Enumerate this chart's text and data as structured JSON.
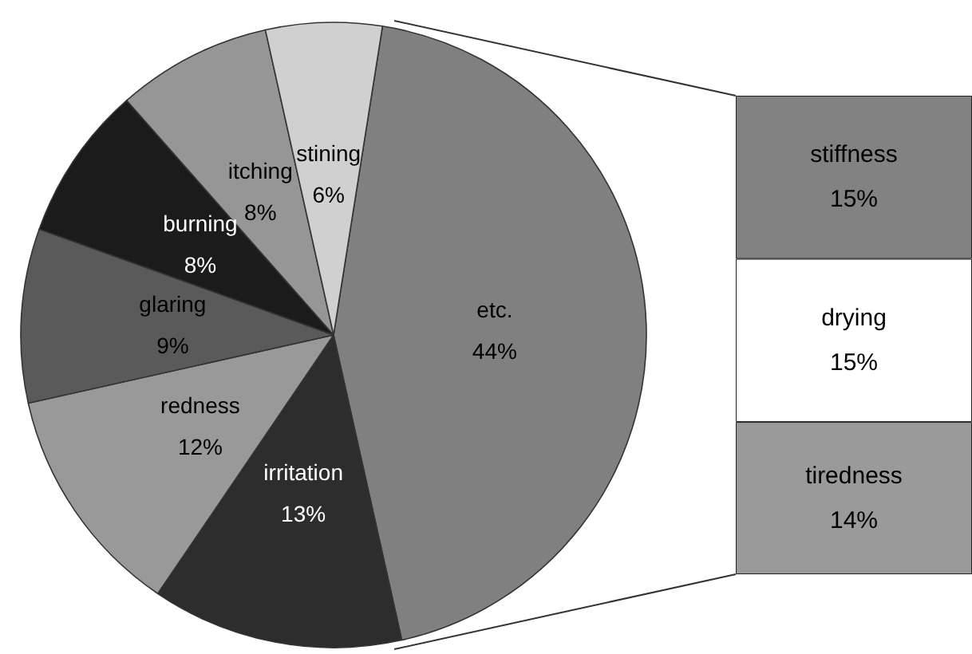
{
  "chart_data": [
    {
      "type": "pie",
      "categories": [
        "etc.",
        "irritation",
        "redness",
        "glaring",
        "burning",
        "itching",
        "stining"
      ],
      "values": [
        44,
        13,
        12,
        9,
        8,
        8,
        6
      ],
      "value_labels": [
        "44%",
        "13%",
        "12%",
        "9%",
        "8%",
        "8%",
        "6%"
      ],
      "colors": [
        "#808080",
        "#2d2d2d",
        "#999999",
        "#5a5a5a",
        "#1b1b1b",
        "#969696",
        "#d0d0d0"
      ]
    },
    {
      "type": "bar",
      "stacked": true,
      "categories": [
        null
      ],
      "series": [
        {
          "name": "tiredness",
          "color": "#9a9a9a",
          "values": [
            14
          ],
          "value_labels": [
            "14%"
          ]
        },
        {
          "name": "drying",
          "color": "#ffffff",
          "values": [
            15
          ],
          "value_labels": [
            "15%"
          ]
        },
        {
          "name": "stiffness",
          "color": "#828282",
          "values": [
            15
          ],
          "value_labels": [
            "15%"
          ]
        }
      ]
    }
  ]
}
